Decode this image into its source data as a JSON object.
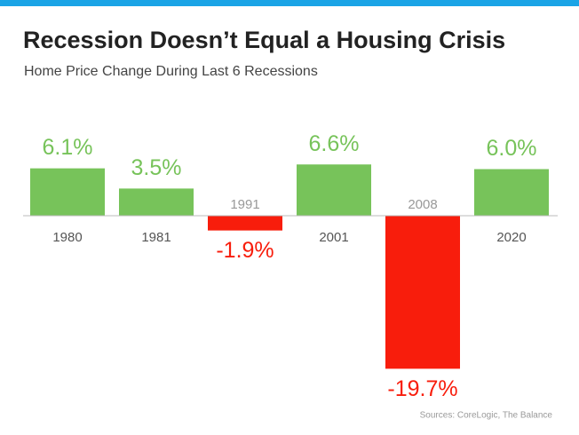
{
  "chart_data": {
    "type": "bar",
    "title": "Recession Doesn’t Equal a Housing Crisis",
    "subtitle": "Home Price Change During Last 6 Recessions",
    "categories": [
      "1980",
      "1981",
      "1991",
      "2001",
      "2008",
      "2020"
    ],
    "values": [
      6.1,
      3.5,
      -1.9,
      6.6,
      -19.7,
      6.0
    ],
    "value_labels": [
      "6.1%",
      "3.5%",
      "-1.9%",
      "6.6%",
      "-19.7%",
      "6.0%"
    ],
    "colors": [
      "#77c35a",
      "#77c35a",
      "#f81d0c",
      "#77c35a",
      "#f81d0c",
      "#77c35a"
    ],
    "source": "Sources: CoreLogic, The Balance"
  }
}
